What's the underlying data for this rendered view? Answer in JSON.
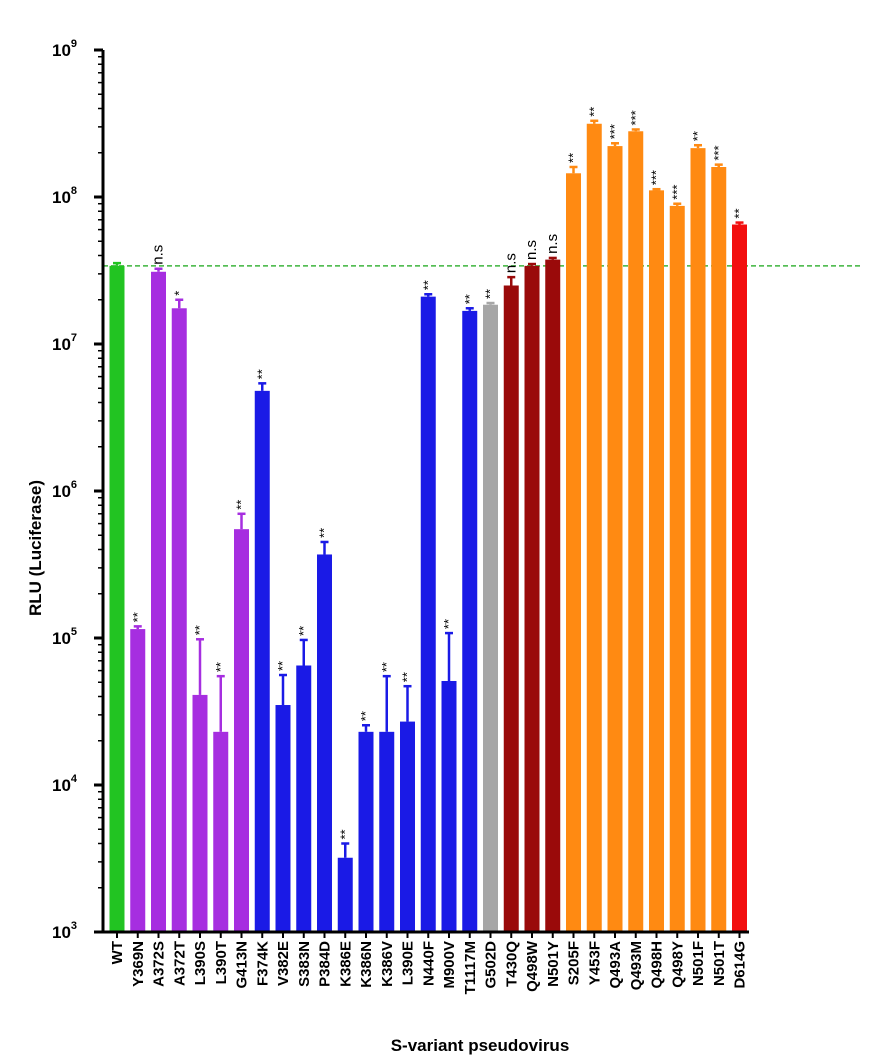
{
  "chart_data": {
    "type": "bar",
    "xlabel": "S-variant pseudovirus",
    "ylabel": "RLU (Luciferase)",
    "yscale": "log",
    "ylim": [
      1000,
      1000000000
    ],
    "yticks": [
      {
        "base": "10",
        "exp": "3"
      },
      {
        "base": "10",
        "exp": "4"
      },
      {
        "base": "10",
        "exp": "5"
      },
      {
        "base": "10",
        "exp": "6"
      },
      {
        "base": "10",
        "exp": "7"
      },
      {
        "base": "10",
        "exp": "8"
      },
      {
        "base": "10",
        "exp": "9"
      }
    ],
    "reference_line": 34000000,
    "colors": {
      "green": "#22c422",
      "purple": "#a62ee0",
      "blue": "#1a1ae6",
      "gray": "#a6a6a6",
      "darkred": "#9a0a0a",
      "orange": "#ff8a12",
      "red": "#f20f0f",
      "reference": "#3cb43c"
    },
    "categories": [
      "WT",
      "Y369N",
      "A372S",
      "A372T",
      "L390S",
      "L390T",
      "G413N",
      "F374K",
      "V382E",
      "S383N",
      "P384D",
      "K386E",
      "K386N",
      "K386V",
      "L390E",
      "N440F",
      "M900V",
      "T1117M",
      "G502D",
      "T430Q",
      "Q498W",
      "N501Y",
      "S205F",
      "Y453F",
      "Q493A",
      "Q493M",
      "Q498H",
      "Q498Y",
      "N501F",
      "N501T",
      "D614G"
    ],
    "values": [
      34000000,
      115000,
      31000000,
      17500000,
      41000,
      23000,
      550000,
      4800000,
      35000,
      65000,
      370000,
      3200,
      23000,
      23000,
      27000,
      21000000,
      51000,
      16800000,
      18500000,
      25000000,
      34000000,
      37500000,
      145000000,
      315000000,
      222000000,
      280000000,
      111000000,
      87000000,
      215000000,
      160000000,
      65000000
    ],
    "error_tops": [
      35500000,
      120000,
      32500000,
      20000000,
      98000,
      55000,
      700000,
      5400000,
      56000,
      97000,
      450000,
      4000,
      25500,
      55000,
      47000,
      21800000,
      108000,
      17500000,
      19000000,
      28500000,
      35000000,
      38500000,
      160000000,
      330000000,
      232000000,
      288000000,
      113000000,
      90000000,
      225000000,
      166000000,
      67000000
    ],
    "color_groups": [
      "green",
      "purple",
      "purple",
      "purple",
      "purple",
      "purple",
      "purple",
      "blue",
      "blue",
      "blue",
      "blue",
      "blue",
      "blue",
      "blue",
      "blue",
      "blue",
      "blue",
      "blue",
      "gray",
      "darkred",
      "darkred",
      "darkred",
      "orange",
      "orange",
      "orange",
      "orange",
      "orange",
      "orange",
      "orange",
      "orange",
      "red"
    ],
    "significance": [
      "",
      "**",
      "n.s",
      "*",
      "**",
      "**",
      "**",
      "**",
      "**",
      "**",
      "**",
      "**",
      "**",
      "**",
      "**",
      "**",
      "**",
      "**",
      "**",
      "n.s",
      "n.s",
      "n.s",
      "**",
      "**",
      "***",
      "***",
      "***",
      "***",
      "**",
      "***",
      "**"
    ]
  }
}
